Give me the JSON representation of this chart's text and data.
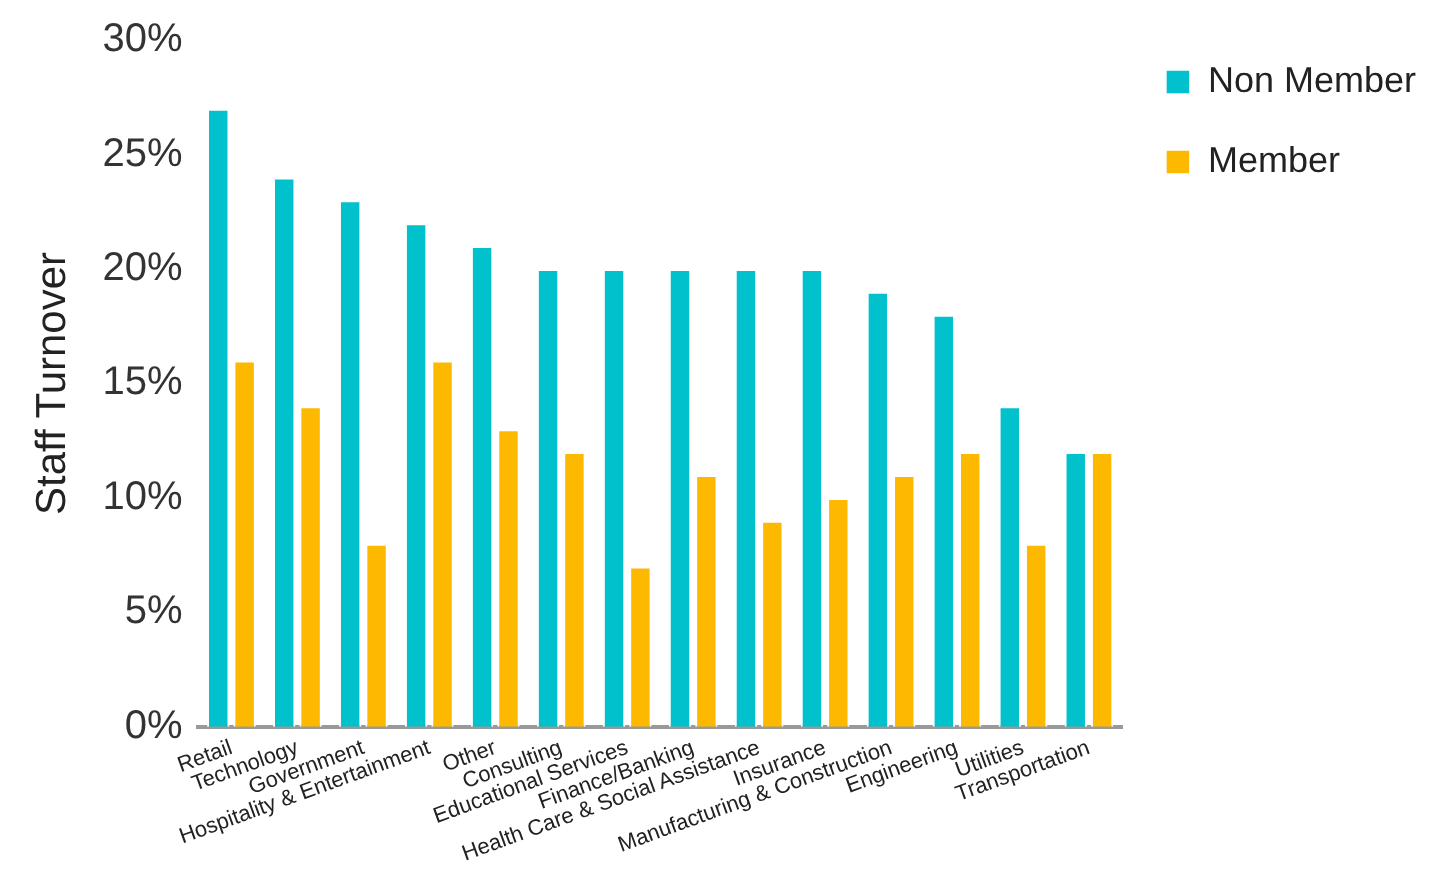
{
  "chart_data": {
    "type": "bar",
    "ylabel": "Staff Turnover",
    "categories": [
      "Retail",
      "Technology",
      "Government",
      "Hospitality & Entertainment",
      "Other",
      "Consulting",
      "Educational Services",
      "Finance/Banking",
      "Health Care & Social Assistance",
      "Insurance",
      "Manufacturing & Construction",
      "Engineering",
      "Utilities",
      "Transportation"
    ],
    "series": [
      {
        "name": "Non Member",
        "color": "#00c1cc",
        "values": [
          27,
          24,
          23,
          22,
          21,
          20,
          20,
          20,
          20,
          20,
          19,
          18,
          14,
          12
        ]
      },
      {
        "name": "Member",
        "color": "#fcb900",
        "values": [
          16,
          14,
          8,
          16,
          13,
          12,
          7,
          11,
          9,
          10,
          11,
          12,
          8,
          12
        ]
      }
    ],
    "ylim": [
      0,
      30
    ],
    "yticks": [
      {
        "value": 0,
        "label": "0%"
      },
      {
        "value": 5,
        "label": "5%"
      },
      {
        "value": 10,
        "label": "10%"
      },
      {
        "value": 15,
        "label": "15%"
      },
      {
        "value": 20,
        "label": "20%"
      },
      {
        "value": 25,
        "label": "25%"
      },
      {
        "value": 30,
        "label": "30%"
      }
    ],
    "grid": false,
    "legend": "top right"
  }
}
